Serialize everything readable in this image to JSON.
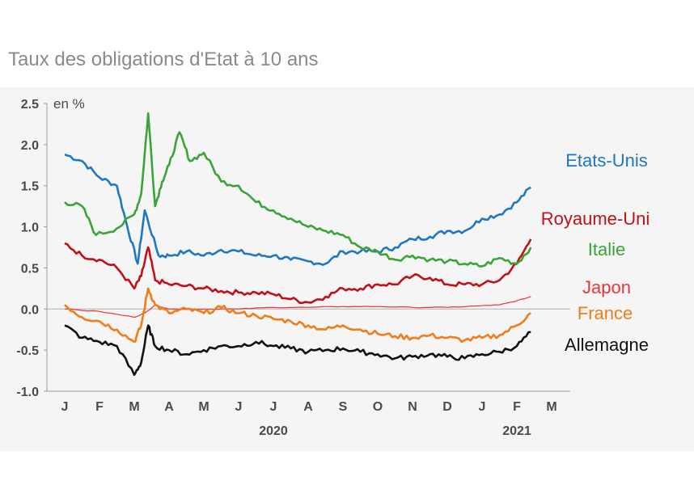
{
  "title": "Taux des obligations d'Etat à 10 ans",
  "chart_data": {
    "type": "line",
    "ylabel": "en %",
    "ylim": [
      -1.0,
      2.5
    ],
    "yticks": [
      "2.5",
      "2.0",
      "1.5",
      "1.0",
      "0.5",
      "0.0",
      "-0.5",
      "-1.0"
    ],
    "ytick_values": [
      2.5,
      2.0,
      1.5,
      1.0,
      0.5,
      0.0,
      -0.5,
      -1.0
    ],
    "x_months": [
      "J",
      "F",
      "M",
      "A",
      "M",
      "J",
      "J",
      "A",
      "S",
      "O",
      "N",
      "D",
      "J",
      "F",
      "M"
    ],
    "x_years": [
      {
        "label": "2020",
        "month_index": 6
      },
      {
        "label": "2021",
        "month_index": 13
      }
    ],
    "reference_line": 0.0,
    "series": [
      {
        "name": "Etats-Unis",
        "color": "#1f77c4",
        "x": [
          0,
          0.5,
          1.0,
          1.5,
          1.8,
          2.1,
          2.3,
          2.7,
          3.0,
          3.5,
          4.0,
          4.5,
          5.0,
          5.5,
          6.0,
          6.5,
          7.0,
          7.5,
          8.0,
          8.5,
          9.0,
          9.5,
          10.0,
          10.5,
          11.0,
          11.5,
          12.0,
          12.5,
          13.0,
          13.4
        ],
        "values": [
          1.88,
          1.8,
          1.6,
          1.5,
          1.0,
          0.55,
          1.2,
          0.65,
          0.65,
          0.7,
          0.65,
          0.72,
          0.7,
          0.65,
          0.65,
          0.6,
          0.58,
          0.55,
          0.7,
          0.7,
          0.7,
          0.75,
          0.85,
          0.88,
          0.95,
          0.95,
          1.1,
          1.15,
          1.3,
          1.48
        ]
      },
      {
        "name": "Royaume-Uni",
        "color": "#c0101a",
        "x": [
          0,
          0.5,
          1.0,
          1.5,
          2.0,
          2.2,
          2.4,
          2.6,
          3.0,
          3.5,
          4.0,
          4.5,
          5.0,
          5.5,
          6.0,
          6.5,
          7.0,
          7.5,
          8.0,
          8.5,
          9.0,
          9.5,
          10.0,
          10.5,
          11.0,
          11.5,
          12.0,
          12.5,
          13.0,
          13.4
        ],
        "values": [
          0.8,
          0.65,
          0.6,
          0.5,
          0.25,
          0.4,
          0.75,
          0.35,
          0.3,
          0.28,
          0.25,
          0.22,
          0.2,
          0.2,
          0.18,
          0.12,
          0.08,
          0.15,
          0.25,
          0.25,
          0.3,
          0.3,
          0.4,
          0.38,
          0.3,
          0.3,
          0.3,
          0.35,
          0.55,
          0.85
        ]
      },
      {
        "name": "Italie",
        "color": "#3aa33a",
        "x": [
          0,
          0.5,
          0.9,
          1.5,
          2.0,
          2.2,
          2.4,
          2.6,
          2.8,
          3.0,
          3.3,
          3.6,
          4.0,
          4.5,
          5.0,
          5.5,
          6.0,
          6.5,
          7.0,
          7.5,
          8.0,
          8.5,
          9.0,
          9.5,
          10.0,
          10.5,
          11.0,
          11.5,
          12.0,
          12.5,
          13.0,
          13.4
        ],
        "values": [
          1.3,
          1.25,
          0.9,
          0.98,
          1.15,
          1.4,
          2.38,
          1.25,
          1.55,
          1.75,
          2.15,
          1.8,
          1.9,
          1.55,
          1.5,
          1.3,
          1.2,
          1.1,
          1.0,
          0.95,
          0.9,
          0.75,
          0.7,
          0.6,
          0.65,
          0.6,
          0.58,
          0.55,
          0.52,
          0.62,
          0.55,
          0.75
        ]
      },
      {
        "name": "Japon",
        "color": "#e8343c",
        "x": [
          0,
          1.0,
          2.0,
          2.3,
          2.6,
          3.0,
          4.0,
          5.0,
          6.0,
          7.0,
          8.0,
          9.0,
          10.0,
          11.0,
          12.0,
          12.5,
          13.0,
          13.4
        ],
        "values": [
          0.0,
          -0.03,
          -0.1,
          -0.05,
          0.05,
          0.0,
          0.0,
          0.0,
          0.02,
          0.02,
          0.03,
          0.03,
          0.02,
          0.02,
          0.04,
          0.05,
          0.1,
          0.15
        ]
      },
      {
        "name": "France",
        "color": "#f07c1a",
        "x": [
          0,
          0.5,
          1.0,
          1.5,
          2.0,
          2.2,
          2.4,
          2.6,
          3.0,
          3.5,
          4.0,
          4.5,
          5.0,
          5.5,
          6.0,
          6.5,
          7.0,
          7.5,
          8.0,
          8.5,
          9.0,
          9.5,
          10.0,
          10.5,
          11.0,
          11.5,
          12.0,
          12.5,
          13.0,
          13.4
        ],
        "values": [
          0.05,
          -0.1,
          -0.15,
          -0.25,
          -0.4,
          -0.2,
          0.25,
          0.05,
          -0.05,
          0.0,
          -0.05,
          0.02,
          -0.05,
          -0.08,
          -0.12,
          -0.15,
          -0.2,
          -0.25,
          -0.2,
          -0.25,
          -0.3,
          -0.33,
          -0.35,
          -0.32,
          -0.35,
          -0.38,
          -0.35,
          -0.32,
          -0.2,
          -0.05
        ]
      },
      {
        "name": "Allemagne",
        "color": "#111111",
        "x": [
          0,
          0.5,
          1.0,
          1.5,
          2.0,
          2.2,
          2.4,
          2.6,
          3.0,
          3.5,
          4.0,
          4.5,
          5.0,
          5.5,
          6.0,
          6.5,
          7.0,
          7.5,
          8.0,
          8.5,
          9.0,
          9.5,
          10.0,
          10.5,
          11.0,
          11.5,
          12.0,
          12.5,
          13.0,
          13.4
        ],
        "values": [
          -0.2,
          -0.35,
          -0.4,
          -0.45,
          -0.8,
          -0.65,
          -0.2,
          -0.45,
          -0.5,
          -0.55,
          -0.5,
          -0.45,
          -0.45,
          -0.4,
          -0.45,
          -0.48,
          -0.52,
          -0.5,
          -0.48,
          -0.52,
          -0.55,
          -0.6,
          -0.58,
          -0.55,
          -0.58,
          -0.6,
          -0.55,
          -0.52,
          -0.45,
          -0.28
        ]
      }
    ]
  }
}
